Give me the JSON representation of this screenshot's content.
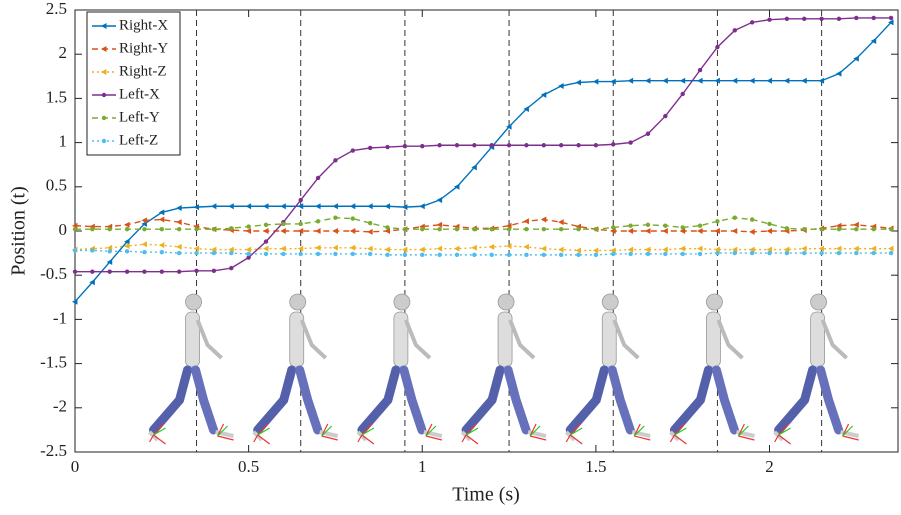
{
  "chart_data": {
    "type": "line",
    "xlabel": "Time (s)",
    "ylabel": "Position (t)",
    "xlim": [
      0,
      2.37
    ],
    "ylim": [
      -2.5,
      2.5
    ],
    "xticks": [
      0,
      0.5,
      1,
      1.5,
      2
    ],
    "yticks": [
      2.5,
      2,
      1.5,
      1,
      0.5,
      0,
      -0.5,
      -1,
      -1.5,
      -2,
      -2.5
    ],
    "vlines": [
      0.35,
      0.65,
      0.95,
      1.25,
      1.55,
      1.85,
      2.15
    ],
    "legend": "upper-left",
    "x": [
      0,
      0.05,
      0.1,
      0.15,
      0.2,
      0.25,
      0.3,
      0.35,
      0.4,
      0.45,
      0.5,
      0.55,
      0.6,
      0.65,
      0.7,
      0.75,
      0.8,
      0.85,
      0.9,
      0.95,
      1,
      1.05,
      1.1,
      1.15,
      1.2,
      1.25,
      1.3,
      1.35,
      1.4,
      1.45,
      1.5,
      1.55,
      1.6,
      1.65,
      1.7,
      1.75,
      1.8,
      1.85,
      1.9,
      1.95,
      2,
      2.05,
      2.1,
      2.15,
      2.2,
      2.25,
      2.3,
      2.35
    ],
    "series": [
      {
        "name": "Right-X",
        "color": "#0072bd",
        "dash": "solid",
        "marker": "triangle-left",
        "values": [
          -0.8,
          -0.58,
          -0.35,
          -0.12,
          0.08,
          0.21,
          0.26,
          0.27,
          0.28,
          0.28,
          0.28,
          0.28,
          0.28,
          0.28,
          0.28,
          0.28,
          0.28,
          0.28,
          0.28,
          0.27,
          0.28,
          0.35,
          0.5,
          0.72,
          0.95,
          1.18,
          1.38,
          1.54,
          1.64,
          1.68,
          1.69,
          1.69,
          1.7,
          1.7,
          1.7,
          1.7,
          1.7,
          1.7,
          1.7,
          1.7,
          1.7,
          1.7,
          1.7,
          1.7,
          1.78,
          1.95,
          2.15,
          2.36
        ]
      },
      {
        "name": "Right-Y",
        "color": "#d95319",
        "dash": "dashed",
        "marker": "triangle-left",
        "values": [
          0.06,
          0.05,
          0.05,
          0.07,
          0.12,
          0.13,
          0.1,
          0.05,
          0.02,
          0.01,
          0,
          0,
          0,
          0,
          0,
          0,
          0,
          -0.01,
          0,
          0.02,
          0.05,
          0.07,
          0.05,
          0.03,
          0.03,
          0.06,
          0.11,
          0.13,
          0.1,
          0.05,
          0.02,
          0,
          0,
          0,
          0,
          0,
          0,
          0,
          0,
          -0.01,
          0,
          0,
          0.01,
          0.03,
          0.06,
          0.07,
          0.05,
          0.03
        ]
      },
      {
        "name": "Right-Z",
        "color": "#edb120",
        "dash": "dotted",
        "marker": "triangle-left",
        "values": [
          -0.21,
          -0.2,
          -0.19,
          -0.17,
          -0.15,
          -0.16,
          -0.18,
          -0.2,
          -0.21,
          -0.21,
          -0.21,
          -0.2,
          -0.2,
          -0.2,
          -0.19,
          -0.19,
          -0.19,
          -0.2,
          -0.21,
          -0.21,
          -0.21,
          -0.2,
          -0.2,
          -0.19,
          -0.18,
          -0.17,
          -0.18,
          -0.2,
          -0.21,
          -0.22,
          -0.22,
          -0.22,
          -0.21,
          -0.21,
          -0.21,
          -0.2,
          -0.2,
          -0.21,
          -0.21,
          -0.21,
          -0.21,
          -0.21,
          -0.2,
          -0.2,
          -0.2,
          -0.2,
          -0.2,
          -0.2
        ]
      },
      {
        "name": "Left-X",
        "color": "#7e2f8e",
        "dash": "solid",
        "marker": "circle",
        "values": [
          -0.46,
          -0.46,
          -0.46,
          -0.46,
          -0.46,
          -0.46,
          -0.46,
          -0.45,
          -0.45,
          -0.42,
          -0.3,
          -0.12,
          0.1,
          0.35,
          0.6,
          0.8,
          0.91,
          0.94,
          0.95,
          0.96,
          0.96,
          0.97,
          0.97,
          0.97,
          0.97,
          0.97,
          0.97,
          0.97,
          0.97,
          0.97,
          0.97,
          0.98,
          1.0,
          1.1,
          1.3,
          1.55,
          1.82,
          2.08,
          2.27,
          2.36,
          2.39,
          2.4,
          2.4,
          2.4,
          2.4,
          2.41,
          2.41,
          2.41
        ]
      },
      {
        "name": "Left-Y",
        "color": "#77ac30",
        "dash": "dashed",
        "marker": "circle",
        "values": [
          0.02,
          0.02,
          0.02,
          0.02,
          0.02,
          0.02,
          0.02,
          0.02,
          0.02,
          0.03,
          0.05,
          0.07,
          0.08,
          0.08,
          0.11,
          0.15,
          0.14,
          0.09,
          0.04,
          0.02,
          0.02,
          0.02,
          0.02,
          0.02,
          0.02,
          0.02,
          0.02,
          0.02,
          0.02,
          0.02,
          0.02,
          0.04,
          0.06,
          0.07,
          0.06,
          0.04,
          0.06,
          0.11,
          0.15,
          0.13,
          0.08,
          0.03,
          0.02,
          0.02,
          0.02,
          0.02,
          0.02,
          0.02
        ]
      },
      {
        "name": "Left-Z",
        "color": "#4dbeee",
        "dash": "dotted",
        "marker": "circle",
        "values": [
          -0.22,
          -0.22,
          -0.23,
          -0.23,
          -0.24,
          -0.24,
          -0.25,
          -0.25,
          -0.25,
          -0.25,
          -0.26,
          -0.26,
          -0.26,
          -0.26,
          -0.26,
          -0.26,
          -0.26,
          -0.26,
          -0.27,
          -0.27,
          -0.27,
          -0.27,
          -0.27,
          -0.27,
          -0.27,
          -0.27,
          -0.27,
          -0.27,
          -0.27,
          -0.27,
          -0.27,
          -0.26,
          -0.26,
          -0.26,
          -0.26,
          -0.26,
          -0.26,
          -0.25,
          -0.25,
          -0.25,
          -0.25,
          -0.25,
          -0.25,
          -0.25,
          -0.25,
          -0.25,
          -0.25,
          -0.25
        ]
      }
    ]
  }
}
